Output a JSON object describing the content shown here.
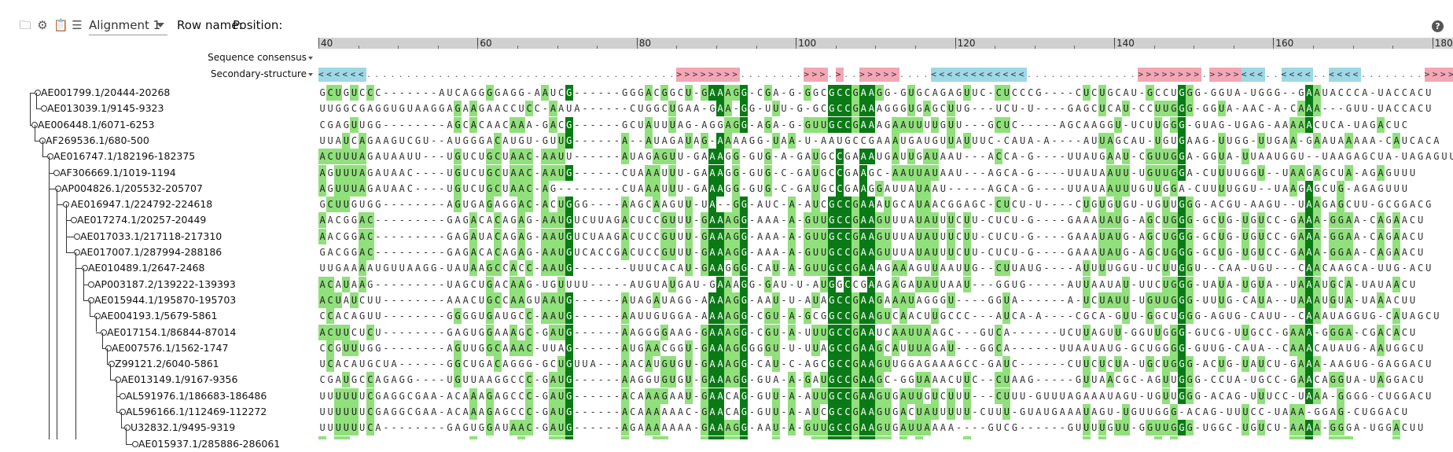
{
  "toolbar": {
    "icons": [
      "folder-icon",
      "gear-icon",
      "clipboard-icon",
      "list-icon"
    ],
    "alignment_select": "Alignment 1",
    "row_name_label": "Row name:",
    "position_label": "Position:",
    "help_label": "?"
  },
  "ruler": {
    "start": 40,
    "end": 181,
    "ticks": [
      "40",
      "60",
      "80",
      "100",
      "120",
      "140",
      "160",
      "180"
    ]
  },
  "tracks": {
    "consensus_label": "Sequence consensus",
    "structure_label": "Secondary-structure"
  },
  "colors": {
    "conserved_dark": "#0a7a16",
    "conserved_light": "#90e07c",
    "helix_open": "#9ed8e6",
    "helix_close": "#f3a6b4"
  },
  "secondary_structure": "<<<<<<.......................................>>>>>>>>........>>>.>..>>>>>....<<<<<<<<<<<<..............>>>>>>>>.>>>><<<..<<<<..<<<<........>>>>.>>>>>>>>",
  "sequences": [
    {
      "name": "AE001799.1/20444-20268",
      "seq": "GCUGUCCC-------AUCAGGGGAGG-AAUCG------GGGACGGCU-GAAAGG-CGA-G-GGCGCCGAAGG-GUGCAGAGUUC-CUCCCG----CUCUGCAU-GCCUGGG-GGUA-UGGG--GAAUACCCA-UACCACU"
    },
    {
      "name": "AE013039.1/9145-9323",
      "seq": "UUGGCGAGGUGUAAGGAGAAGAACCUCC-AAUA------CUGGCUGAA-GAA-GG-UUU-G-GCGCCGAAAGGGUGAGCUUG---UCU-U----GAGCUCAU-CCUUGGG-GGUA-AAC-A-CAAA---GUU-UACCACU"
    },
    {
      "name": "AE006448.1/6071-6253",
      "seq": "CGAGUUGG--------AGCACAACAAA-GACG------GCUAUUUAG-AGGAGG-AGA-G-GUUGCCGAAAGAAUUUUGUU---GCUC-----AGCAAGGU-UCUUGGG-GUAG-UGAG-AAAAACUCA-UAGACUC"
    },
    {
      "name": "AF269536.1/680-500",
      "seq": "UUAUCAGAAGUCGU--AUGGGACAUGU-GUUG------A--AUAGAUAG-AAAAGG-UAA-U-AAUGCCGAAAUGAUGUUAUUUC-CAUA-A----AUUAGCAU-UGUGAAG-UUGG-UUGAA-GAAUAAAAA-CAUCACA"
    },
    {
      "name": "AE016747.1/182196-182375",
      "seq": "ACUUUAGAUAAUU---UGUCUGCUAAC-AAUU------AUAGAGUU-GAAAGG-GUG-A-GAUGCCGAAAUGAUUGAUAAU---ACCA-G----UUAUGAAU-CGUUGGA-GGUA-UUAAUGGU--UAAGAGCUA-UAGAGUU"
    },
    {
      "name": "AF306669.1/1019-1194",
      "seq": "AGUUUAGAUAAC----UGUCUGCUAAC-AAUG------CUAAAUUU-GAAAGG-GUG-C-GAUGCCGAAGC-AAUUAUAAU---AGCA-G----UUAUAAUU-UGUUGGA-CUUUUGGU--UAAGAGCUA-AGAGUUU"
    },
    {
      "name": "AP004826.1/205532-205707",
      "seq": "AGUUUAGAUAAC----UGUCUGCUAAC-AG--------CUAAAUUU-GAAAGG-GUG-C-GAUGCCGAAGGAUUAUAAU-----AGCA-G----UUAUAAUUUGUUGGA-CUUUUGGU--UAAGAGCUG-AGAGUUU"
    },
    {
      "name": "AE016947.1/224792-224618",
      "seq": "GCUUGUGG--------AGUGAGAGGAC-ACUGGG----AAGCAAGUU-UA--GG-AUC-A-AUCGCCGAAAUGCAUAACGGAGC-CUCU-U----CUGUGUGU-UGUUGGG-ACGU-AAGU--UAAGAGCUU-GCGGACG"
    },
    {
      "name": "AE017274.1/20257-20449",
      "seq": "AACGGAC---------GAGACACAGAG-AAUGUCUUAGACUCCGUUU-GAAAGG-AAA-A-GUUGCCGAAGUUUAUAUUUCUU-CUCU-G----GAAAUAUG-AGCUGGG-GCUG-UGUCC-GAAA-GGAA-CAGAACU"
    },
    {
      "name": "AE017033.1/217118-217310",
      "seq": "AACGGAC---------GAGAUACAGAG-AAUGUCUAAGACUCCGUUU-GAAAGG-AAA-A-GUUGCCGAAGUUUAUAUUUCUU-CUCU-G----GAAAUAUG-AGCUGGG-GCUG-UGUCC-GAAA-GGAA-CAGAACU"
    },
    {
      "name": "AE017007.1/287994-288186",
      "seq": "GACGGAC---------GAGACACAGAG-AAUGUCACCGACUCCGUUU-GAAAGG-AAA-A-GUUGCCGAAGUUUAUAUUUCUU-CUCU-G----GAAAUAUG-AGCUGGG-GCUG-UGUCC-GAAA-GGAA-CAGAACU"
    },
    {
      "name": "AE010489.1/2647-2468",
      "seq": "UUGAAAAUGUUAAGG-UAUAAGCCACC-AAUG-------UUUCACAU-GAAGGG-CAU-A-GUUGCCGAAAGAAAGUUAAUUG--CUUAUG----AUUUUGGU-UCUUGGU--CAA-UGU---CAACAAGCA-UUG-ACU"
    },
    {
      "name": "AP003187.2/139222-139393",
      "seq": "ACAUAAG---------UAGCUGACAAG-UGUUUU-----AUGUAUGAU-GAAAGG-GAU-U-AUGGCCGAAGAGAUAUUAAU---GGUG-----AUUAAUAU-UUCUGGG-UAUA-UGUA--UAAAUGCA-UAUAACU"
    },
    {
      "name": "AE015944.1/195870-195703",
      "seq": "ACUAUCUU--------AAACUGCCAAGUAAUG------AUAGAUAGG-AAAAGG-AAU-U-AUAGCCGAAGAAAUAGGGU----GGUA------A-UCUAUU-UGUUGGG-UUUG-CAUA--UAAAUGUA-UAAACUU"
    },
    {
      "name": "AE004193.1/5679-5861",
      "seq": "CCACAGUU--------GGGGUGAUGCC-AAUG------AAUUGUGGA-AAAAGG-CGU-A-GCGGCCGAAGUCAACUUGCCC---AUCA-A----CGCA-GUU-GGCUGGG-AGUG-CAUU--CAAAUAGGUG-CAUAGCU"
    },
    {
      "name": "AE017154.1/86844-87014",
      "seq": "ACUUCUCU--------GAGUGGAAAGC-GAUG------AAGGGGAAG-GAAAGG-CGU-A-UUUGCCGAAUCAAUUAAGC---GUCA------UCUUAGUU-GGUUGGG-GUCG-UUGCC-GAAA-GGGA-CGACACU"
    },
    {
      "name": "AE007576.1/1562-1747",
      "seq": "CCGUUUGG--------AGUUGGCAAAC-UUAG------AUGAACGGU-GAAAGGGGGU-U-UUAGCCGAAGCAUUUAGAU---GGCA------UUAAUAUG-GCUGGGG-GUUG-CAUA--CAAACAUAUG-AAUGGCU"
    },
    {
      "name": "Z99121.2/6040-5861",
      "seq": "UCACAUGCUA------GGCUGACAGGG-GCUGUUA---AACAUGUGU-GAAAGG-CAU-C-AGCGCCGAAGUUGGAGAAAGCC-GAUC------CUUCUCUA-UGCUGGG-ACUG-UAUCU-GAAA-AAGUG-GAGGACU"
    },
    {
      "name": "AE013149.1/9167-9356",
      "seq": "CGAUGCCAGAGG----UGUUAAGGCCC-GAUG------AAGGUGUGU-GAAAGG-GUA-A-GAUGCCGAAGC-GGUAAACUUC--CUAAG-----GUUAACGC-AGUUGGG-CCUA-UGCC-GAACAGGUA-UAGGACU"
    },
    {
      "name": "AL591976.1/186683-186486",
      "seq": "UUUUUUCGAGGCGAA-ACAAAGAGCCC-GAUG------ACAAAGAAU-GAACAG-GUU-A-AUUGCCGAAGUGAUUGUCUUU---CUUU-GUUUAGAAAUAGU-UGUUGGG-ACAG-UUUCC-UAAA-GGGG-CUGGACU"
    },
    {
      "name": "AL596166.1/112469-112272",
      "seq": "UUUUUUCGAGGCGAA-ACAAAGAGCCC-GAUG------ACAAAAAAC-GAACAG-GUU-A-AUCGCCGAAGUGACUAUUUUU-CUUU-GUAUGAAAUAGU-UGUUGGG-ACAG-UUUCC-UAAA-GGAG-CUGGACU"
    },
    {
      "name": "U32832.1/9495-9319",
      "seq": "UUUUUUCA--------GAGUGGAUAAC-GAUG------AGAAAAAAA-GAAAGG-AAU-A-GUUGCCGAAGUGAUUAAAA----GUCG------GUUUUGUU-GGUUGGG-UGGC-UGUCU-AAAA-GGGA-UGGACUU"
    },
    {
      "name": "AE015937.1/285886-286061",
      "seq": "AGUUAGA---------GAUAAAAGGAA-GAUG------AUGUAGAUG-GAAAGG-AAU-U-AUUGCCGAAGUGAGUUAAACUUUUUGA------UAUGUUA-GAUUGGU-AGUC-AGUCU-AAAA-AGGA-UGUAAAU"
    }
  ]
}
